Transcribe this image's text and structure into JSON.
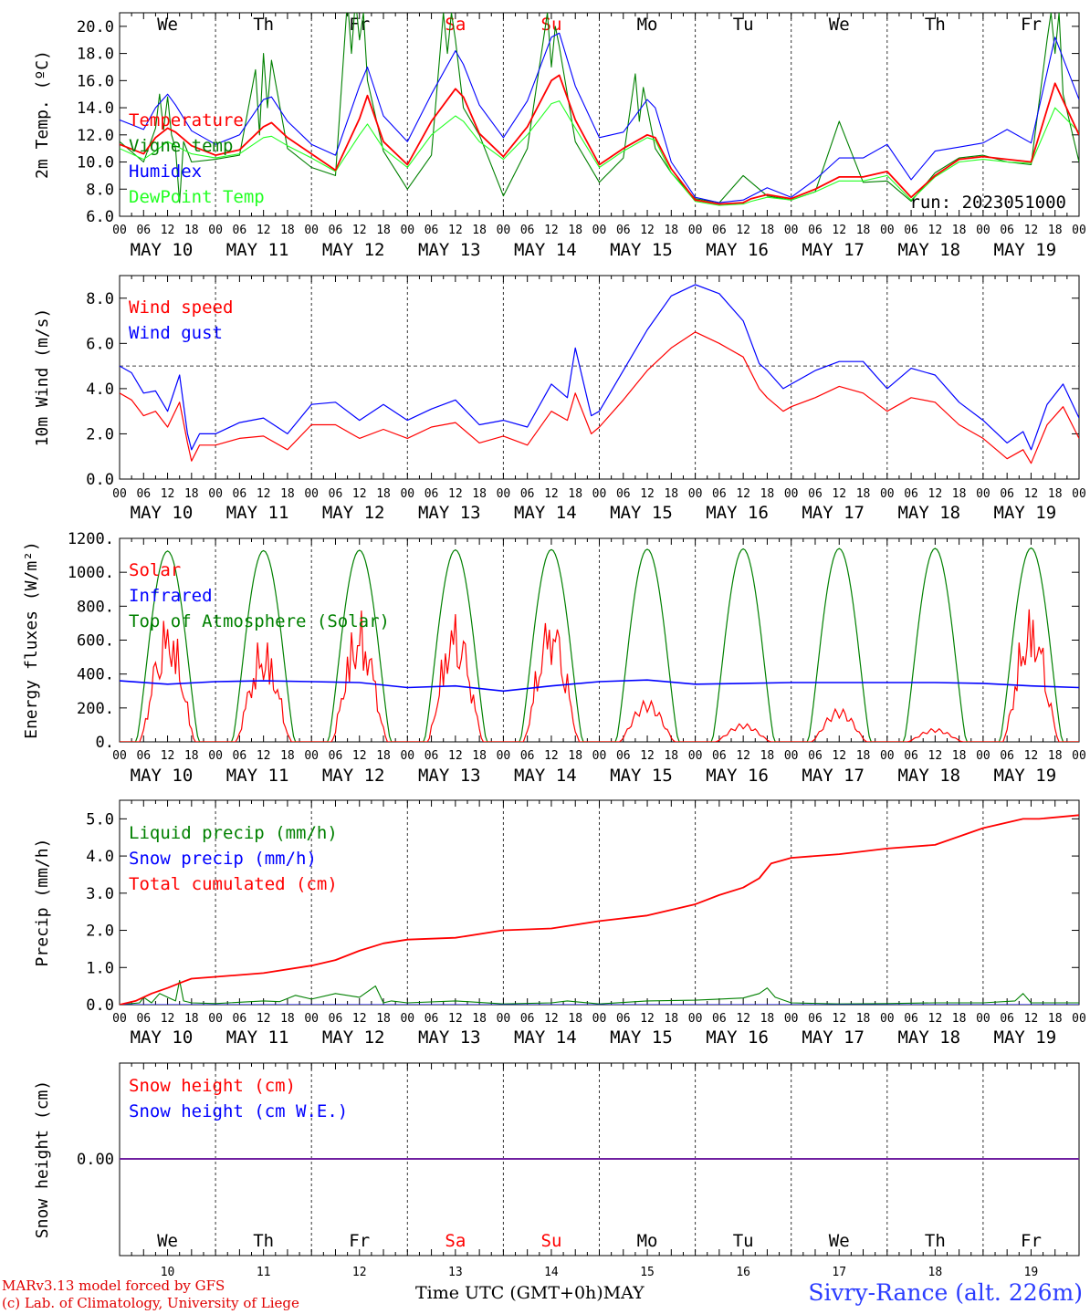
{
  "footer": {
    "model_credit": "MARv3.13 model forced by GFS",
    "lab_credit": "(c) Lab. of Climatology, University of Liege",
    "x_axis_title": "Time UTC (GMT+0h)",
    "month": "MAY",
    "station": "Sivry-Rance (alt. 226m)"
  },
  "colors": {
    "red": "#ff0000",
    "blue": "#0000ff",
    "darkgreen": "#008000",
    "lightgreen": "#22ff22",
    "purple": "#7020a0",
    "weekend": "#ff0000"
  },
  "days": {
    "weekday_labels": [
      "We",
      "Th",
      "Fr",
      "Sa",
      "Su",
      "Mo",
      "Tu",
      "We",
      "Th",
      "Fr"
    ],
    "weekend_flags": [
      false,
      false,
      false,
      true,
      true,
      false,
      false,
      false,
      false,
      false
    ],
    "date_labels": [
      "MAY 10",
      "MAY 11",
      "MAY 12",
      "MAY 13",
      "MAY 14",
      "MAY 15",
      "MAY 16",
      "MAY 17",
      "MAY 18",
      "MAY 19"
    ],
    "day_numbers": [
      "10",
      "11",
      "12",
      "13",
      "14",
      "15",
      "16",
      "17",
      "18",
      "19"
    ],
    "hour_ticks": [
      "00",
      "06",
      "12",
      "18"
    ],
    "final_tick": "00"
  },
  "chart_data": [
    {
      "type": "line",
      "id": "temperature",
      "ylabel": "2m Temp. (ºC)",
      "ylim": [
        6,
        21
      ],
      "yticks": [
        "6.0",
        "8.0",
        "10.0",
        "12.0",
        "14.0",
        "16.0",
        "18.0",
        "20.0"
      ],
      "run_label": "run: 2023051000",
      "x_unit": "hours since May 10 00 UTC",
      "series": [
        {
          "name": "Temperature",
          "color": "#ff0000",
          "x": [
            0,
            6,
            9,
            12,
            14,
            18,
            24,
            30,
            36,
            38,
            42,
            48,
            54,
            60,
            62,
            66,
            72,
            78,
            84,
            86,
            90,
            96,
            102,
            108,
            110,
            114,
            120,
            126,
            132,
            134,
            138,
            144,
            150,
            156,
            158,
            162,
            168,
            174,
            180,
            186,
            192,
            198,
            204,
            210,
            216,
            222,
            228,
            234,
            240
          ],
          "y": [
            11.3,
            10.6,
            11.8,
            12.5,
            12.2,
            11.2,
            10.5,
            10.9,
            12.6,
            12.9,
            11.8,
            10.6,
            9.4,
            13.2,
            14.9,
            11.5,
            9.8,
            13.0,
            15.4,
            14.8,
            12.1,
            10.4,
            12.6,
            16.0,
            16.4,
            13.1,
            9.8,
            11.0,
            12.0,
            11.8,
            9.5,
            7.2,
            6.9,
            7.0,
            7.3,
            7.6,
            7.3,
            8.0,
            8.9,
            8.9,
            9.3,
            7.4,
            9.0,
            10.2,
            10.4,
            10.2,
            10.0,
            15.8,
            12.0
          ]
        },
        {
          "name": "Vigne temp",
          "color": "#008000",
          "x": [
            0,
            6,
            9,
            10,
            11,
            12,
            13,
            14,
            15,
            16,
            18,
            24,
            30,
            34,
            35,
            36,
            37,
            38,
            42,
            48,
            54,
            57,
            58,
            59,
            60,
            61,
            62,
            66,
            72,
            78,
            81,
            82,
            83,
            84,
            86,
            90,
            96,
            102,
            107,
            108,
            109,
            110,
            114,
            120,
            126,
            129,
            130,
            131,
            132,
            134,
            138,
            144,
            150,
            156,
            162,
            168,
            174,
            180,
            186,
            192,
            198,
            204,
            210,
            216,
            222,
            228,
            232,
            233,
            234,
            235,
            236,
            240
          ],
          "y": [
            11.5,
            10.0,
            12.5,
            15.0,
            12.4,
            14.8,
            12.0,
            11.0,
            7.0,
            11.5,
            10.0,
            10.2,
            10.5,
            16.8,
            12.0,
            18.0,
            14.0,
            17.5,
            11.0,
            9.6,
            9.0,
            22.0,
            18.0,
            22.0,
            19.0,
            21.0,
            16.0,
            10.8,
            8.0,
            10.5,
            21.0,
            18.0,
            21.0,
            19.0,
            14.0,
            12.0,
            7.5,
            11.0,
            21.0,
            17.0,
            20.0,
            18.5,
            11.5,
            8.5,
            10.3,
            16.5,
            13.0,
            15.5,
            14.0,
            11.0,
            9.2,
            7.3,
            7.0,
            9.0,
            7.5,
            7.2,
            7.8,
            13.0,
            8.5,
            8.6,
            7.1,
            9.2,
            10.3,
            10.5,
            10.0,
            9.8,
            19.0,
            21.0,
            18.0,
            21.0,
            15.0,
            10.0
          ]
        },
        {
          "name": "Humidex",
          "color": "#0000ff",
          "x": [
            0,
            6,
            9,
            12,
            14,
            18,
            24,
            30,
            36,
            38,
            42,
            48,
            54,
            60,
            62,
            66,
            72,
            78,
            84,
            86,
            90,
            96,
            102,
            108,
            110,
            114,
            120,
            126,
            132,
            134,
            138,
            144,
            150,
            156,
            158,
            162,
            168,
            174,
            180,
            186,
            192,
            198,
            204,
            210,
            216,
            222,
            228,
            234,
            240
          ],
          "y": [
            13.1,
            12.4,
            14.0,
            15.0,
            14.2,
            12.3,
            11.3,
            12.0,
            14.6,
            14.8,
            13.0,
            11.3,
            10.5,
            15.6,
            17.0,
            13.4,
            11.5,
            15.0,
            18.2,
            17.2,
            14.2,
            11.8,
            14.5,
            19.2,
            19.5,
            15.6,
            11.8,
            12.2,
            14.6,
            14.0,
            10.0,
            7.4,
            7.0,
            7.2,
            7.5,
            8.1,
            7.4,
            8.7,
            10.3,
            10.3,
            11.3,
            8.7,
            10.8,
            11.1,
            11.4,
            12.4,
            11.4,
            19.2,
            14.6
          ]
        },
        {
          "name": "DewPoint Temp",
          "color": "#22ff22",
          "x": [
            0,
            6,
            9,
            12,
            14,
            18,
            24,
            30,
            36,
            38,
            42,
            48,
            54,
            60,
            62,
            66,
            72,
            78,
            84,
            86,
            90,
            96,
            102,
            108,
            110,
            114,
            120,
            126,
            132,
            134,
            138,
            144,
            150,
            156,
            158,
            162,
            168,
            174,
            180,
            186,
            192,
            198,
            204,
            210,
            216,
            222,
            228,
            234,
            240
          ],
          "y": [
            11.0,
            10.2,
            10.8,
            11.5,
            11.2,
            10.6,
            10.3,
            10.6,
            11.8,
            11.9,
            11.2,
            10.3,
            9.3,
            12.0,
            12.8,
            11.0,
            9.6,
            12.0,
            13.4,
            13.0,
            11.5,
            10.2,
            12.0,
            14.3,
            14.5,
            12.5,
            9.6,
            10.8,
            11.8,
            11.6,
            9.2,
            7.1,
            6.8,
            6.9,
            7.1,
            7.4,
            7.2,
            7.8,
            8.6,
            8.6,
            9.0,
            7.2,
            8.9,
            10.0,
            10.2,
            10.0,
            9.9,
            14.0,
            12.2
          ]
        }
      ]
    },
    {
      "type": "line",
      "id": "wind",
      "ylabel": "10m Wind (m/s)",
      "ylim": [
        0,
        9
      ],
      "yticks": [
        "0.0",
        "2.0",
        "4.0",
        "6.0",
        "8.0"
      ],
      "reference_line": 5.0,
      "x_unit": "hours since May 10 00 UTC",
      "series": [
        {
          "name": "Wind speed",
          "color": "#ff0000",
          "x": [
            0,
            3,
            6,
            9,
            12,
            15,
            17,
            18,
            20,
            24,
            30,
            36,
            42,
            48,
            54,
            60,
            66,
            72,
            78,
            84,
            90,
            96,
            102,
            108,
            112,
            114,
            118,
            120,
            126,
            132,
            138,
            144,
            150,
            156,
            160,
            162,
            166,
            168,
            174,
            180,
            186,
            192,
            198,
            204,
            210,
            216,
            222,
            226,
            228,
            232,
            236,
            240
          ],
          "y": [
            3.8,
            3.5,
            2.8,
            3.0,
            2.3,
            3.4,
            1.6,
            0.8,
            1.5,
            1.5,
            1.8,
            1.9,
            1.3,
            2.4,
            2.4,
            1.8,
            2.2,
            1.8,
            2.3,
            2.5,
            1.6,
            1.9,
            1.5,
            3.0,
            2.6,
            3.8,
            2.0,
            2.3,
            3.5,
            4.8,
            5.8,
            6.5,
            6.0,
            5.4,
            4.0,
            3.6,
            3.0,
            3.2,
            3.6,
            4.1,
            3.8,
            3.0,
            3.6,
            3.4,
            2.4,
            1.8,
            0.9,
            1.3,
            0.7,
            2.4,
            3.2,
            1.8
          ]
        },
        {
          "name": "Wind gust",
          "color": "#0000ff",
          "x": [
            0,
            3,
            6,
            9,
            12,
            15,
            17,
            18,
            20,
            24,
            30,
            36,
            42,
            48,
            54,
            60,
            66,
            72,
            78,
            84,
            90,
            96,
            102,
            108,
            112,
            114,
            118,
            120,
            126,
            132,
            138,
            144,
            150,
            156,
            160,
            162,
            166,
            168,
            174,
            180,
            186,
            192,
            198,
            204,
            210,
            216,
            222,
            226,
            228,
            232,
            236,
            240
          ],
          "y": [
            5.0,
            4.7,
            3.8,
            3.9,
            3.0,
            4.6,
            2.0,
            1.3,
            2.0,
            2.0,
            2.5,
            2.7,
            2.0,
            3.3,
            3.4,
            2.6,
            3.3,
            2.6,
            3.1,
            3.5,
            2.4,
            2.6,
            2.3,
            4.2,
            3.6,
            5.8,
            2.8,
            3.0,
            4.8,
            6.6,
            8.1,
            8.6,
            8.2,
            7.0,
            5.1,
            4.8,
            4.0,
            4.2,
            4.8,
            5.2,
            5.2,
            4.0,
            4.9,
            4.6,
            3.4,
            2.6,
            1.6,
            2.1,
            1.3,
            3.3,
            4.2,
            2.7
          ]
        }
      ]
    },
    {
      "type": "line",
      "id": "energy",
      "ylabel": "Energy fluxes (W/m²)",
      "ylim": [
        0,
        1200
      ],
      "yticks": [
        "0.",
        "200.",
        "400.",
        "600.",
        "800.",
        "1000.",
        "1200."
      ],
      "x_unit": "hours since May 10 00 UTC",
      "series": [
        {
          "name": "Solar",
          "color": "#ff0000",
          "daily_peaks_wm2": [
            780,
            640,
            790,
            800,
            820,
            250,
            110,
            200,
            80,
            830
          ],
          "note_shape": "daytime bursts between about 05 and 19 UTC"
        },
        {
          "name": "Infrared",
          "color": "#0000ff",
          "x": [
            0,
            12,
            24,
            36,
            48,
            60,
            72,
            84,
            96,
            108,
            120,
            132,
            144,
            156,
            168,
            180,
            192,
            204,
            216,
            228,
            240
          ],
          "y": [
            360,
            340,
            355,
            360,
            355,
            350,
            320,
            330,
            300,
            330,
            355,
            365,
            340,
            345,
            350,
            350,
            350,
            350,
            345,
            330,
            320
          ]
        },
        {
          "name": "Top of Atmosphere (Solar)",
          "color": "#008000",
          "daily_peaks_wm2": [
            1125,
            1128,
            1130,
            1132,
            1134,
            1136,
            1138,
            1140,
            1141,
            1143
          ],
          "sunrise_hour": 4.2,
          "sunset_hour": 19.8
        }
      ]
    },
    {
      "type": "line",
      "id": "precip",
      "ylabel": "Precip (mm/h)",
      "ylim": [
        0,
        5.5
      ],
      "yticks": [
        "0.0",
        "1.0",
        "2.0",
        "3.0",
        "4.0",
        "5.0"
      ],
      "x_unit": "hours since May 10 00 UTC",
      "series": [
        {
          "name": "Liquid precip (mm/h)",
          "color": "#008000",
          "x": [
            0,
            5,
            6,
            8,
            10,
            12,
            14,
            15,
            16,
            18,
            24,
            36,
            40,
            44,
            48,
            54,
            60,
            64,
            66,
            68,
            72,
            84,
            96,
            108,
            112,
            120,
            132,
            144,
            150,
            156,
            160,
            162,
            164,
            168,
            180,
            192,
            204,
            216,
            224,
            226,
            228,
            240
          ],
          "y": [
            0,
            0.05,
            0.2,
            0.05,
            0.3,
            0.2,
            0.1,
            0.65,
            0.1,
            0.05,
            0.03,
            0.1,
            0.08,
            0.25,
            0.15,
            0.3,
            0.2,
            0.5,
            0.05,
            0.1,
            0.05,
            0.1,
            0.02,
            0.05,
            0.1,
            0.02,
            0.1,
            0.12,
            0.15,
            0.18,
            0.3,
            0.45,
            0.2,
            0.05,
            0.02,
            0.03,
            0.05,
            0.05,
            0.1,
            0.3,
            0.05,
            0.05
          ]
        },
        {
          "name": "Snow precip (mm/h)",
          "color": "#0000ff",
          "x": [
            0,
            240
          ],
          "y": [
            0,
            0
          ]
        },
        {
          "name": "Total cumulated (cm)",
          "color": "#ff0000",
          "x": [
            0,
            4,
            8,
            12,
            16,
            18,
            24,
            36,
            48,
            54,
            60,
            66,
            72,
            84,
            96,
            108,
            120,
            132,
            144,
            150,
            156,
            160,
            163,
            168,
            180,
            192,
            204,
            216,
            226,
            230,
            240
          ],
          "y": [
            0,
            0.1,
            0.3,
            0.45,
            0.62,
            0.7,
            0.75,
            0.85,
            1.05,
            1.2,
            1.45,
            1.65,
            1.75,
            1.8,
            2.0,
            2.05,
            2.25,
            2.4,
            2.7,
            2.95,
            3.15,
            3.4,
            3.8,
            3.95,
            4.05,
            4.2,
            4.3,
            4.75,
            5.0,
            5.0,
            5.1
          ]
        }
      ]
    },
    {
      "type": "line",
      "id": "snow",
      "ylabel": "Snow height (cm)",
      "yticks": [
        "0.00"
      ],
      "x_unit": "hours since May 10 00 UTC",
      "series": [
        {
          "name": "Snow height (cm)",
          "color": "#ff0000",
          "x": [
            0,
            240
          ],
          "y": [
            0,
            0
          ]
        },
        {
          "name": "Snow height (cm W.E.)",
          "color": "#0000ff",
          "x": [
            0,
            240
          ],
          "y": [
            0,
            0
          ]
        }
      ]
    }
  ]
}
